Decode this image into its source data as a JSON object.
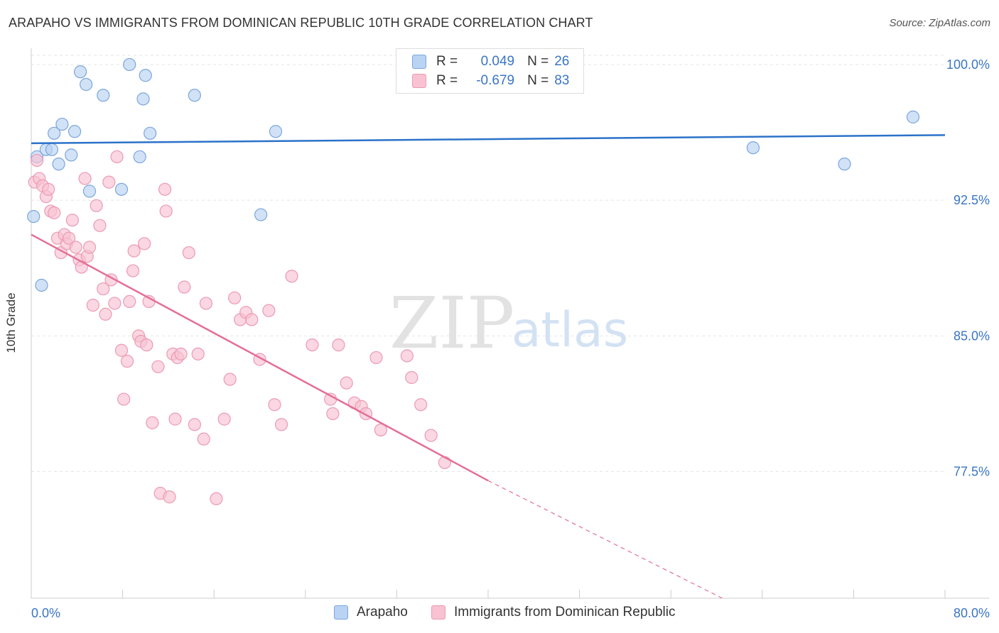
{
  "title": "ARAPAHO VS IMMIGRANTS FROM DOMINICAN REPUBLIC 10TH GRADE CORRELATION CHART",
  "source": "Source: ZipAtlas.com",
  "watermark": {
    "zip": "ZIP",
    "atlas": "atlas"
  },
  "stats": {
    "arapaho": {
      "r_label": "R =",
      "r_value": "0.049",
      "n_label": "N =",
      "n_value": "26"
    },
    "dominican": {
      "r_label": "R =",
      "r_value": "-0.679",
      "n_label": "N =",
      "n_value": "83"
    }
  },
  "colors": {
    "arapaho_fill": "#b9d3f3",
    "arapaho_stroke": "#7aa6dc",
    "arapaho_line": "#2b72c9",
    "dominican_fill": "#f8c2d2",
    "dominican_stroke": "#ec9ab3",
    "dominican_line": "#e46f97",
    "tick_label": "#3a75c4",
    "grid": "#e5e5e5"
  },
  "chart_data": {
    "type": "scatter",
    "xlabel": "",
    "ylabel": "10th Grade",
    "xlim": [
      0.0,
      80.0
    ],
    "ylim": [
      70.5,
      100.9
    ],
    "x_tick_labels": [
      {
        "value": 0.0,
        "label": "0.0%"
      },
      {
        "value": 80.0,
        "label": "80.0%"
      }
    ],
    "y_tick_labels": [
      {
        "value": 100.0,
        "label": "100.0%"
      },
      {
        "value": 92.5,
        "label": "92.5%"
      },
      {
        "value": 85.0,
        "label": "85.0%"
      },
      {
        "value": 77.5,
        "label": "77.5%"
      }
    ],
    "grid": true,
    "legend_position": "bottom-center",
    "series": [
      {
        "name": "Arapaho",
        "points": [
          [
            0.2,
            91.6
          ],
          [
            0.5,
            94.9
          ],
          [
            0.9,
            87.8
          ],
          [
            1.3,
            95.3
          ],
          [
            1.8,
            95.3
          ],
          [
            2.0,
            96.2
          ],
          [
            2.4,
            94.5
          ],
          [
            2.7,
            96.7
          ],
          [
            3.5,
            95.0
          ],
          [
            3.8,
            96.3
          ],
          [
            4.3,
            99.6
          ],
          [
            4.8,
            98.9
          ],
          [
            5.1,
            93.0
          ],
          [
            6.3,
            98.3
          ],
          [
            7.9,
            93.1
          ],
          [
            8.6,
            100.0
          ],
          [
            9.5,
            94.9
          ],
          [
            9.8,
            98.1
          ],
          [
            10.0,
            99.4
          ],
          [
            10.4,
            96.2
          ],
          [
            14.3,
            98.3
          ],
          [
            20.1,
            91.7
          ],
          [
            21.4,
            96.3
          ],
          [
            63.2,
            95.4
          ],
          [
            71.2,
            94.5
          ],
          [
            77.2,
            97.1
          ]
        ],
        "trend": {
          "x0": 0.0,
          "y0": 95.65,
          "x1": 80.0,
          "y1": 96.1
        }
      },
      {
        "name": "Immigrants from Dominican Republic",
        "points": [
          [
            0.3,
            93.5
          ],
          [
            0.5,
            94.7
          ],
          [
            0.7,
            93.7
          ],
          [
            1.0,
            93.3
          ],
          [
            1.3,
            92.7
          ],
          [
            1.5,
            93.1
          ],
          [
            1.7,
            91.9
          ],
          [
            2.0,
            91.8
          ],
          [
            2.3,
            90.4
          ],
          [
            2.6,
            89.6
          ],
          [
            2.9,
            90.6
          ],
          [
            3.1,
            90.1
          ],
          [
            3.3,
            90.4
          ],
          [
            3.6,
            91.4
          ],
          [
            3.9,
            89.9
          ],
          [
            4.2,
            89.2
          ],
          [
            4.4,
            88.8
          ],
          [
            4.7,
            93.7
          ],
          [
            4.9,
            89.4
          ],
          [
            5.1,
            89.9
          ],
          [
            5.4,
            86.7
          ],
          [
            5.7,
            92.2
          ],
          [
            6.0,
            91.1
          ],
          [
            6.3,
            87.6
          ],
          [
            6.5,
            86.2
          ],
          [
            6.8,
            93.5
          ],
          [
            7.0,
            88.1
          ],
          [
            7.3,
            86.8
          ],
          [
            7.5,
            94.9
          ],
          [
            7.9,
            84.2
          ],
          [
            8.1,
            81.5
          ],
          [
            8.4,
            83.6
          ],
          [
            8.6,
            86.9
          ],
          [
            8.9,
            88.6
          ],
          [
            9.0,
            89.7
          ],
          [
            9.4,
            85.0
          ],
          [
            9.6,
            84.7
          ],
          [
            9.9,
            90.1
          ],
          [
            10.1,
            84.5
          ],
          [
            10.3,
            86.9
          ],
          [
            10.6,
            80.2
          ],
          [
            11.1,
            83.3
          ],
          [
            11.3,
            76.3
          ],
          [
            11.7,
            93.1
          ],
          [
            11.8,
            91.9
          ],
          [
            12.1,
            76.1
          ],
          [
            12.4,
            84.0
          ],
          [
            12.6,
            80.4
          ],
          [
            12.8,
            83.8
          ],
          [
            13.1,
            84.0
          ],
          [
            13.4,
            87.7
          ],
          [
            13.8,
            89.6
          ],
          [
            14.3,
            80.1
          ],
          [
            14.6,
            84.0
          ],
          [
            15.1,
            79.3
          ],
          [
            15.3,
            86.8
          ],
          [
            16.2,
            76.0
          ],
          [
            16.9,
            80.4
          ],
          [
            17.4,
            82.6
          ],
          [
            17.8,
            87.1
          ],
          [
            18.3,
            85.9
          ],
          [
            18.8,
            86.3
          ],
          [
            19.3,
            85.9
          ],
          [
            20.0,
            83.7
          ],
          [
            20.8,
            86.4
          ],
          [
            21.3,
            81.2
          ],
          [
            21.9,
            80.1
          ],
          [
            22.8,
            88.3
          ],
          [
            24.6,
            84.5
          ],
          [
            26.2,
            81.5
          ],
          [
            26.4,
            80.7
          ],
          [
            26.9,
            84.5
          ],
          [
            27.6,
            82.4
          ],
          [
            28.3,
            81.3
          ],
          [
            28.9,
            81.1
          ],
          [
            29.3,
            80.7
          ],
          [
            30.2,
            83.8
          ],
          [
            30.6,
            79.8
          ],
          [
            32.9,
            83.9
          ],
          [
            33.3,
            82.7
          ],
          [
            34.1,
            81.2
          ],
          [
            35.0,
            79.5
          ],
          [
            36.2,
            78.0
          ]
        ],
        "trend": {
          "x0": 0.0,
          "y0": 90.6,
          "x1": 40.0,
          "y1": 77.0
        },
        "trend_extension": {
          "x0": 40.0,
          "y0": 77.0,
          "x1": 60.5,
          "y1": 70.5
        }
      }
    ]
  }
}
